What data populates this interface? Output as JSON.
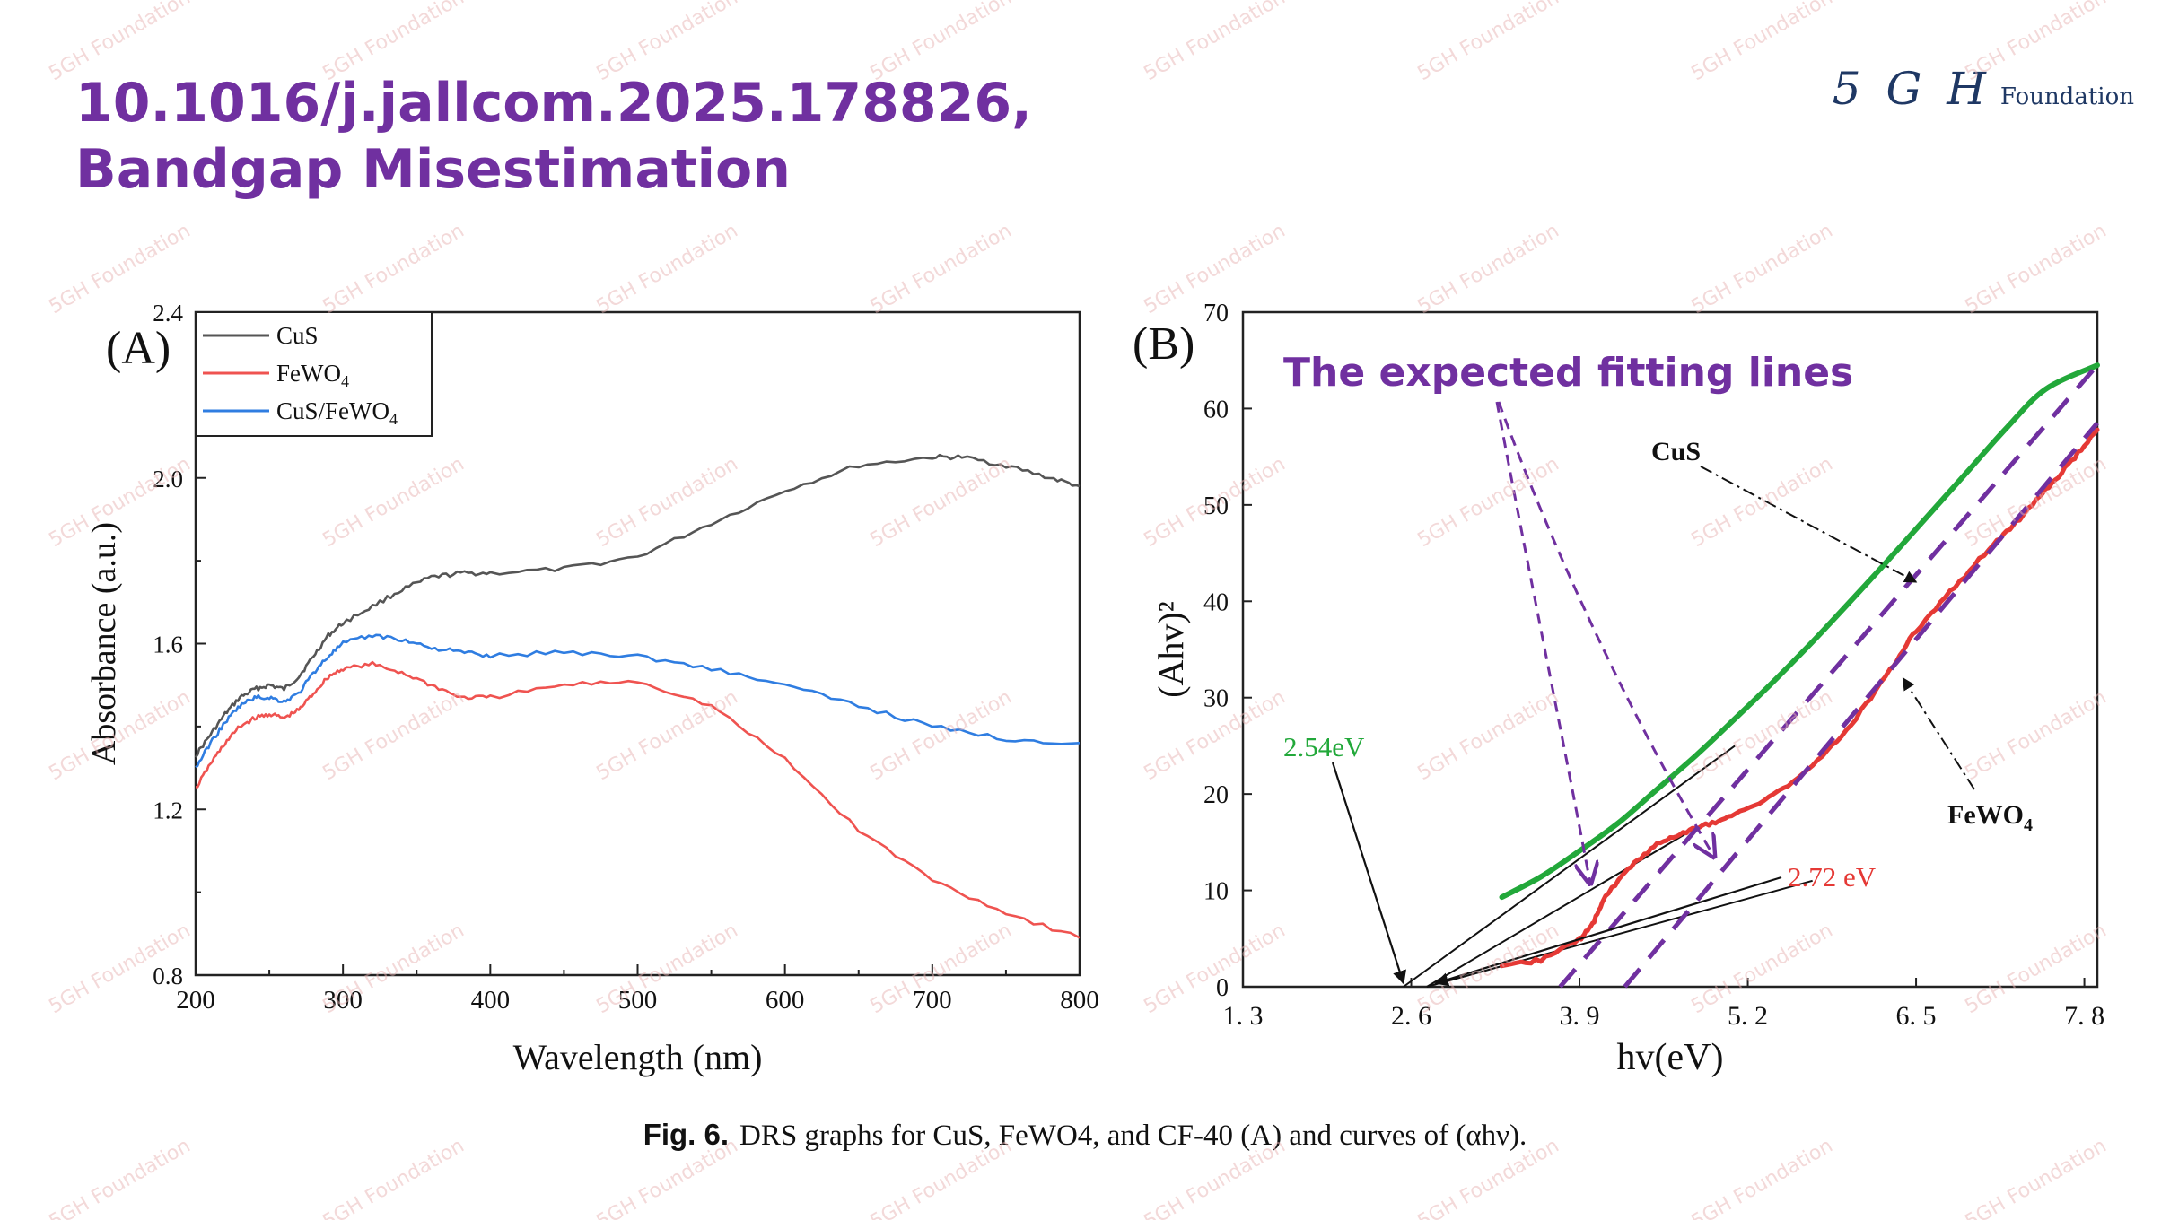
{
  "title": {
    "line1": "10.1016/j.jallcom.2025.178826,",
    "line2": "Bandgap Misestimation"
  },
  "logo": {
    "mark": "5 G H",
    "word": "Foundation"
  },
  "watermark_text": "5GH Foundation",
  "caption": {
    "label": "Fig. 6.",
    "text": "DRS graphs for CuS, FeWO4, and CF-40 (A) and curves of (αhν)."
  },
  "colors": {
    "accent": "#7030a0",
    "cus": "#555555",
    "fewo4": "#ef5350",
    "composite": "#2f7de1",
    "tauc_cus": "#22a83a",
    "tauc_fewo4": "#e53935"
  },
  "chart_data": [
    {
      "type": "line",
      "panel_label": "(A)",
      "xlabel": "Wavelength (nm)",
      "ylabel": "Absorbance (a.u.)",
      "xlim": [
        200,
        800
      ],
      "ylim": [
        0.8,
        2.4
      ],
      "xticks": [
        200,
        300,
        400,
        500,
        600,
        700,
        800
      ],
      "xtick_labels": [
        "200",
        "300",
        "400",
        "500",
        "600",
        "700",
        "800"
      ],
      "yticks": [
        0.8,
        1.2,
        1.6,
        2.0,
        2.4
      ],
      "ytick_labels": [
        "0.8",
        "1.2",
        "1.6",
        "2.0",
        "2.4"
      ],
      "legend_position": "top-left",
      "grid": false,
      "series": [
        {
          "name": "CuS",
          "color": "#555555",
          "x": [
            200,
            210,
            220,
            230,
            240,
            250,
            260,
            270,
            280,
            290,
            300,
            320,
            340,
            360,
            380,
            400,
            450,
            500,
            550,
            600,
            650,
            700,
            720,
            750,
            780,
            800
          ],
          "y": [
            1.33,
            1.38,
            1.43,
            1.47,
            1.49,
            1.5,
            1.49,
            1.52,
            1.57,
            1.62,
            1.65,
            1.69,
            1.73,
            1.76,
            1.77,
            1.77,
            1.78,
            1.81,
            1.89,
            1.97,
            2.03,
            2.05,
            2.05,
            2.03,
            2.0,
            1.98
          ]
        },
        {
          "name": "FeWO4",
          "color": "#ef5350",
          "x": [
            200,
            210,
            220,
            230,
            240,
            250,
            260,
            270,
            280,
            290,
            300,
            320,
            340,
            360,
            380,
            400,
            450,
            500,
            550,
            600,
            650,
            700,
            750,
            800
          ],
          "y": [
            1.25,
            1.31,
            1.36,
            1.4,
            1.42,
            1.43,
            1.42,
            1.44,
            1.48,
            1.52,
            1.54,
            1.55,
            1.53,
            1.5,
            1.47,
            1.47,
            1.5,
            1.51,
            1.45,
            1.32,
            1.15,
            1.03,
            0.95,
            0.89
          ]
        },
        {
          "name": "CuS/FeWO4",
          "color": "#2f7de1",
          "x": [
            200,
            210,
            220,
            230,
            240,
            250,
            260,
            270,
            280,
            290,
            300,
            320,
            340,
            360,
            380,
            400,
            450,
            500,
            550,
            600,
            650,
            700,
            750,
            800
          ],
          "y": [
            1.3,
            1.36,
            1.41,
            1.45,
            1.47,
            1.47,
            1.46,
            1.48,
            1.53,
            1.57,
            1.6,
            1.62,
            1.61,
            1.59,
            1.58,
            1.57,
            1.58,
            1.57,
            1.54,
            1.5,
            1.45,
            1.4,
            1.37,
            1.36
          ]
        }
      ]
    },
    {
      "type": "line",
      "panel_label": "(B)",
      "xlabel": "hv(eV)",
      "ylabel": "(Ahv)²",
      "xlim": [
        1.3,
        7.9
      ],
      "ylim": [
        0,
        70
      ],
      "xticks": [
        1.3,
        2.6,
        3.9,
        5.2,
        6.5,
        7.8
      ],
      "xtick_labels": [
        "1. 3",
        "2. 6",
        "3. 9",
        "5. 2",
        "6. 5",
        "7. 8"
      ],
      "yticks": [
        0,
        10,
        20,
        30,
        40,
        50,
        60,
        70
      ],
      "ytick_labels": [
        "0",
        "10",
        "20",
        "30",
        "40",
        "50",
        "60",
        "70"
      ],
      "grid": false,
      "series": [
        {
          "name": "CuS",
          "color": "#22a83a",
          "x": [
            3.3,
            3.6,
            3.9,
            4.2,
            4.5,
            4.8,
            5.1,
            5.4,
            5.7,
            6.0,
            6.3,
            6.6,
            6.9,
            7.2,
            7.5,
            7.9
          ],
          "y": [
            9.3,
            11.4,
            14.1,
            17.0,
            20.5,
            24.0,
            27.8,
            31.7,
            35.8,
            40.1,
            44.5,
            49.0,
            53.5,
            58.0,
            62.0,
            64.5
          ]
        },
        {
          "name": "FeWO4",
          "color": "#e53935",
          "x": [
            3.3,
            3.6,
            3.9,
            4.0,
            4.1,
            4.3,
            4.5,
            4.7,
            4.9,
            5.1,
            5.4,
            5.7,
            6.0,
            6.3,
            6.5,
            6.8,
            7.1,
            7.3,
            7.5,
            7.7,
            7.9
          ],
          "y": [
            2.0,
            2.8,
            4.9,
            6.5,
            9.4,
            12.6,
            14.8,
            16.0,
            16.9,
            17.8,
            19.9,
            22.8,
            27.2,
            32.9,
            37.0,
            41.5,
            46.0,
            48.5,
            51.5,
            54.5,
            57.8
          ]
        }
      ],
      "annotations": [
        {
          "text": "CuS",
          "target_x": 6.5,
          "target_y": 42
        },
        {
          "text": "FeWO4",
          "target_x": 6.4,
          "target_y": 32
        },
        {
          "text": "2.54eV",
          "color": "#22a83a",
          "target_x": 2.54,
          "target_y": 0
        },
        {
          "text": "2.72 eV",
          "color": "#e53935",
          "target_x": 2.72,
          "target_y": 0
        },
        {
          "text": "The expected fitting lines",
          "color": "#7030a0"
        }
      ],
      "reported_tangent_lines": [
        {
          "label": "CuS tangent",
          "x": [
            2.54,
            5.1
          ],
          "y": [
            0,
            25
          ]
        },
        {
          "label": "FeWO4 tangent",
          "x": [
            2.72,
            4.8
          ],
          "y": [
            0,
            16.5
          ]
        },
        {
          "label": "FeWO4 secondary",
          "x": [
            2.72,
            5.7
          ],
          "y": [
            0,
            11
          ]
        }
      ],
      "expected_fitting_lines": [
        {
          "x": [
            3.75,
            7.9
          ],
          "y": [
            0,
            64.5
          ]
        },
        {
          "x": [
            4.25,
            7.9
          ],
          "y": [
            0,
            58.5
          ]
        }
      ]
    }
  ]
}
